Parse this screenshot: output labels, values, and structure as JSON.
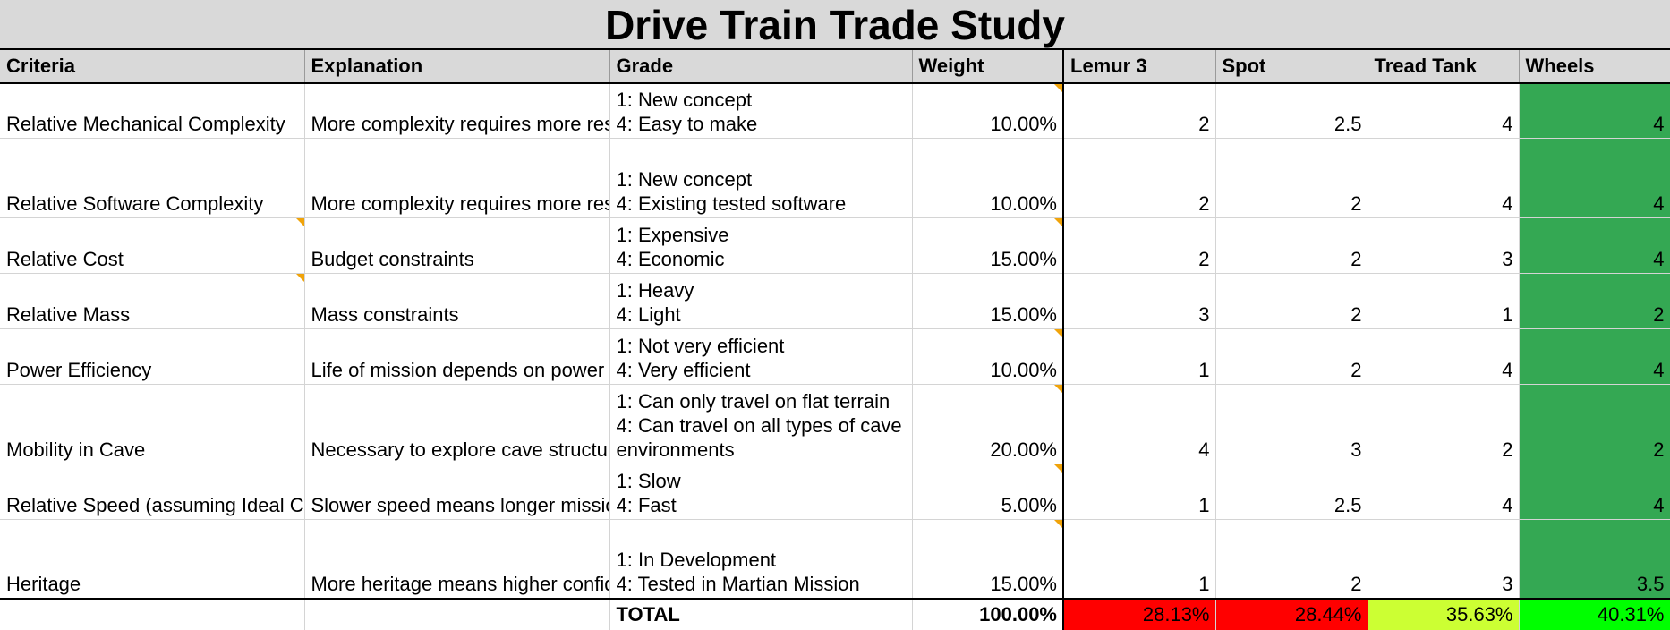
{
  "title": "Drive Train Trade Study",
  "headers": {
    "criteria": "Criteria",
    "explanation": "Explanation",
    "grade": "Grade",
    "weight": "Weight",
    "options": [
      "Lemur 3",
      "Spot",
      "Tread Tank",
      "Wheels"
    ]
  },
  "rows": [
    {
      "criteria": "Relative Mechanical Complexity",
      "explanation": "More complexity requires more research, testing, and analysis",
      "grade_lines": [
        "1: New concept",
        "4: Easy to make"
      ],
      "weight": "10.00%",
      "scores": [
        "2",
        "2.5",
        "4",
        "4"
      ]
    },
    {
      "criteria": "Relative Software Complexity",
      "explanation": "More complexity requires more research, testing, and is prone to errors",
      "grade_lines": [
        "1: New concept",
        "4: Existing tested software"
      ],
      "weight": "10.00%",
      "scores": [
        "2",
        "2",
        "4",
        "4"
      ]
    },
    {
      "criteria": "Relative Cost",
      "explanation": "Budget constraints",
      "grade_lines": [
        "1: Expensive",
        "4: Economic"
      ],
      "weight": "15.00%",
      "scores": [
        "2",
        "2",
        "3",
        "4"
      ]
    },
    {
      "criteria": "Relative Mass",
      "explanation": "Mass constraints",
      "grade_lines": [
        "1: Heavy",
        "4: Light"
      ],
      "weight": "15.00%",
      "scores": [
        "3",
        "2",
        "1",
        "2"
      ]
    },
    {
      "criteria": "Power Efficiency",
      "explanation": "Life of mission depends on power",
      "grade_lines": [
        "1: Not very efficient",
        "4: Very efficient"
      ],
      "weight": "10.00%",
      "scores": [
        "1",
        "2",
        "4",
        "4"
      ]
    },
    {
      "criteria": "Mobility in Cave",
      "explanation": "Necessary to explore cave structure and gather data/take measurements",
      "grade_lines": [
        "1: Can only travel on flat terrain",
        "4: Can travel on all types of cave",
        "environments"
      ],
      "weight": "20.00%",
      "scores": [
        "4",
        "3",
        "2",
        "2"
      ]
    },
    {
      "criteria": "Relative Speed (assuming Ideal Conditions)",
      "explanation": "Slower speed means longer mission",
      "grade_lines": [
        "1: Slow",
        "4: Fast"
      ],
      "weight": "5.00%",
      "scores": [
        "1",
        "2.5",
        "4",
        "4"
      ]
    },
    {
      "criteria": "Heritage",
      "explanation": "More heritage means higher confidence since a previous design is being used",
      "grade_lines": [
        "1: In Development",
        "4: Tested in Martian Mission"
      ],
      "weight": "15.00%",
      "scores": [
        "1",
        "2",
        "3",
        "3.5"
      ]
    }
  ],
  "total": {
    "label": "TOTAL",
    "weight": "100.00%",
    "scores": [
      "28.13%",
      "28.44%",
      "35.63%",
      "40.31%"
    ]
  },
  "colors": {
    "header_gray": "#d9d9d9",
    "option_header": "#fff2cc",
    "best_option": "#34a853",
    "total_low": "#ff0000",
    "total_mid": "#ccff33",
    "total_best": "#00ff00",
    "comment_marker": "#f0a30a"
  }
}
